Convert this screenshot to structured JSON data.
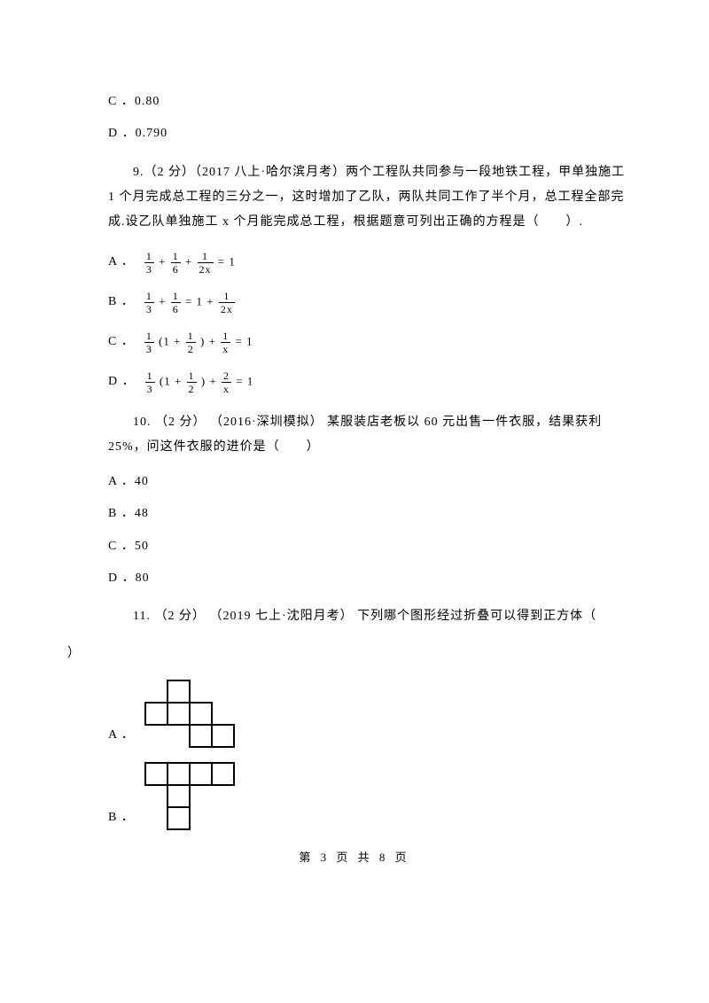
{
  "colors": {
    "text": "#000000",
    "bg": "#ffffff"
  },
  "q8": {
    "optC": "C ．0.80",
    "optD": "D ．0.790"
  },
  "q9": {
    "stem": "9.（2 分）（2017 八上·哈尔滨月考）两个工程队共同参与一段地铁工程，甲单独施工 1 个月完成总工程的三分之一，这时增加了乙队，两队共同工作了半个月，总工程全部完成.设乙队单独施工 x 个月能完成总工程，根据题意可列出正确的方程是（　　）.",
    "A": {
      "label": "A ．",
      "frac1n": "1",
      "frac1d": "3",
      "frac2n": "1",
      "frac2d": "6",
      "frac3n": "1",
      "frac3d": "2x",
      "rhs": "= 1"
    },
    "B": {
      "label": "B ．",
      "frac1n": "1",
      "frac1d": "3",
      "frac2n": "1",
      "frac2d": "6",
      "eq": "= 1 +",
      "frac3n": "1",
      "frac3d": "2x"
    },
    "C": {
      "label": "C ．",
      "frac1n": "1",
      "frac1d": "3",
      "lp": "(1 +",
      "frac2n": "1",
      "frac2d": "2",
      "rp": ") +",
      "frac3n": "1",
      "frac3d": "x",
      "rhs": "= 1"
    },
    "D": {
      "label": "D ．",
      "frac1n": "1",
      "frac1d": "3",
      "lp": "(1 +",
      "frac2n": "1",
      "frac2d": "2",
      "rp": ") +",
      "frac3n": "2",
      "frac3d": "x",
      "rhs": "= 1"
    }
  },
  "q10": {
    "stem": "10. （2 分） （2016·深圳模拟）  某服装店老板以 60 元出售一件衣服，结果获利25%，问这件衣服的进价是（　　）",
    "A": "A ．40",
    "B": "B ．48",
    "C": "C ．50",
    "D": "D ．80"
  },
  "q11": {
    "stem": "11. （2 分） （2019 七上·沈阳月考）  下列哪个图形经过折叠可以得到正方体（",
    "close": "）",
    "labelA": "A ．",
    "labelB": "B ．",
    "netA": {
      "cells": [
        [
          1,
          0
        ],
        [
          0,
          1
        ],
        [
          1,
          1
        ],
        [
          2,
          1
        ],
        [
          2,
          2
        ],
        [
          3,
          2
        ]
      ],
      "cell_size": 25,
      "stroke": "#000000",
      "stroke_width": 2
    },
    "netB": {
      "cells": [
        [
          0,
          0
        ],
        [
          1,
          0
        ],
        [
          2,
          0
        ],
        [
          3,
          0
        ],
        [
          1,
          1
        ],
        [
          1,
          2
        ]
      ],
      "cell_size": 25,
      "stroke": "#000000",
      "stroke_width": 2
    }
  },
  "footer": "第 3 页 共 8 页"
}
